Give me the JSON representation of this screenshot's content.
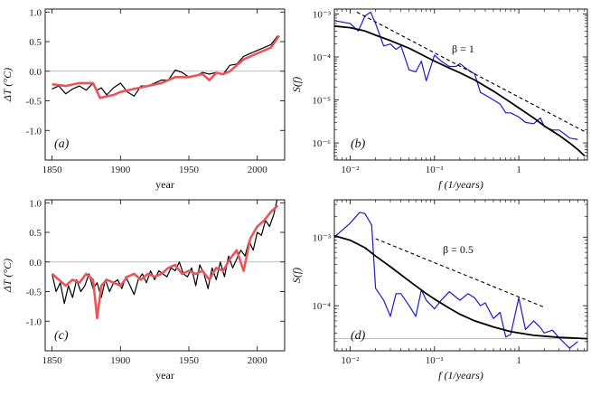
{
  "chart_data": [
    {
      "id": "a",
      "type": "line",
      "panel_label": "(a)",
      "xlabel": "year",
      "ylabel": "ΔT (°C)",
      "xlim": [
        1845,
        2020
      ],
      "ylim": [
        -1.5,
        1.05
      ],
      "x_ticks": [
        1850,
        1900,
        1950,
        2000
      ],
      "y_ticks": [
        -1.0,
        -0.5,
        0.0,
        0.5,
        1.0
      ],
      "y_tick_labels": [
        "-1.0",
        "-0.5",
        "0.0",
        "0.5",
        "1.0"
      ],
      "reference_line": 0,
      "series": [
        {
          "color": "#000000",
          "x": [
            1850,
            1855,
            1860,
            1865,
            1870,
            1875,
            1880,
            1883,
            1886,
            1890,
            1895,
            1900,
            1905,
            1910,
            1915,
            1920,
            1925,
            1930,
            1935,
            1940,
            1945,
            1950,
            1955,
            1960,
            1965,
            1970,
            1975,
            1980,
            1985,
            1990,
            1995,
            2000,
            2005,
            2010,
            2015
          ],
          "y": [
            -0.3,
            -0.25,
            -0.38,
            -0.3,
            -0.25,
            -0.32,
            -0.2,
            -0.32,
            -0.28,
            -0.4,
            -0.28,
            -0.2,
            -0.35,
            -0.42,
            -0.25,
            -0.25,
            -0.2,
            -0.15,
            -0.15,
            0.02,
            -0.02,
            -0.1,
            -0.08,
            -0.02,
            -0.05,
            -0.02,
            -0.05,
            0.1,
            0.12,
            0.25,
            0.3,
            0.35,
            0.4,
            0.45,
            0.6
          ]
        },
        {
          "color": "#e8555a",
          "x": [
            1850,
            1860,
            1870,
            1880,
            1885,
            1895,
            1900,
            1910,
            1920,
            1930,
            1940,
            1950,
            1960,
            1965,
            1970,
            1975,
            1980,
            1990,
            2000,
            2010,
            2016
          ],
          "y": [
            -0.22,
            -0.25,
            -0.2,
            -0.2,
            -0.45,
            -0.4,
            -0.35,
            -0.3,
            -0.25,
            -0.2,
            -0.1,
            -0.1,
            -0.05,
            -0.15,
            -0.03,
            -0.05,
            0.0,
            0.2,
            0.3,
            0.4,
            0.6
          ]
        }
      ]
    },
    {
      "id": "b",
      "type": "line",
      "panel_label": "(b)",
      "xlabel": "f (1/years)",
      "ylabel": "S(f)",
      "xscale": "log",
      "yscale": "log",
      "xlim": [
        0.0065,
        6.5
      ],
      "ylim": [
        4e-07,
        0.0013
      ],
      "x_ticks": [
        0.01,
        0.1,
        1
      ],
      "x_tick_labels": [
        "10⁻²",
        "10⁻¹",
        "1"
      ],
      "y_ticks": [
        1e-06,
        1e-05,
        0.0001,
        0.001
      ],
      "y_tick_labels": [
        "10⁻⁶",
        "10⁻⁵",
        "10⁻⁴",
        "10⁻³"
      ],
      "annotation": "β = 1",
      "series": [
        {
          "style": "blue-periodogram",
          "color": "#1a1acc",
          "x": [
            0.0065,
            0.01,
            0.0125,
            0.015,
            0.0175,
            0.02,
            0.025,
            0.03,
            0.035,
            0.04,
            0.05,
            0.06,
            0.07,
            0.08,
            0.1,
            0.12,
            0.15,
            0.18,
            0.2,
            0.25,
            0.3,
            0.35,
            0.4,
            0.5,
            0.6,
            0.7,
            0.8,
            1.0,
            1.2,
            1.5,
            1.8,
            2.0,
            2.5,
            3.0,
            3.5,
            4.0,
            5.0
          ],
          "y": [
            0.0007,
            0.0006,
            0.0004,
            0.0009,
            0.0011,
            0.0006,
            0.00018,
            0.0002,
            0.00015,
            0.00018,
            5e-05,
            4.5e-05,
            8e-05,
            2.8e-05,
            0.00011,
            8e-05,
            6e-05,
            6e-05,
            7e-05,
            5e-05,
            4e-05,
            1.5e-05,
            1.3e-05,
            1e-05,
            8e-06,
            5e-06,
            5e-06,
            4e-06,
            3e-06,
            2.8e-06,
            3.8e-06,
            2.4e-06,
            2e-06,
            2e-06,
            1.6e-06,
            1.3e-06,
            1.2e-06
          ]
        },
        {
          "style": "model",
          "color": "#000000",
          "x": [
            0.0065,
            0.01,
            0.015,
            0.02,
            0.03,
            0.05,
            0.08,
            0.1,
            0.15,
            0.2,
            0.3,
            0.5,
            0.8,
            1.0,
            1.5,
            2.0,
            3.0,
            4.0,
            5.0,
            6.0
          ],
          "y": [
            0.00052,
            0.00048,
            0.0004,
            0.00032,
            0.00024,
            0.00016,
            0.0001,
            8e-05,
            5.5e-05,
            4.3e-05,
            2.9e-05,
            1.6e-05,
            8.8e-06,
            6.5e-06,
            3.8e-06,
            2.5e-06,
            1.5e-06,
            1e-06,
            7e-07,
            5e-07
          ]
        },
        {
          "style": "reference",
          "color": "#000000",
          "x": [
            0.012,
            6.5
          ],
          "y": [
            0.0011,
            1.7e-06
          ]
        }
      ]
    },
    {
      "id": "c",
      "type": "line",
      "panel_label": "(c)",
      "xlabel": "year",
      "ylabel": "ΔT (°C)",
      "xlim": [
        1845,
        2020
      ],
      "ylim": [
        -1.5,
        1.05
      ],
      "x_ticks": [
        1850,
        1900,
        1950,
        2000
      ],
      "y_ticks": [
        -1.0,
        -0.5,
        0.0,
        0.5,
        1.0
      ],
      "y_tick_labels": [
        "-1.0",
        "-0.5",
        "0.0",
        "0.5",
        "1.0"
      ],
      "reference_line": 0,
      "series": [
        {
          "color": "#000000",
          "x": [
            1850,
            1853,
            1856,
            1859,
            1862,
            1865,
            1868,
            1871,
            1874,
            1877,
            1880,
            1883,
            1886,
            1889,
            1892,
            1895,
            1898,
            1901,
            1904,
            1907,
            1910,
            1913,
            1916,
            1919,
            1922,
            1925,
            1928,
            1931,
            1934,
            1937,
            1940,
            1943,
            1946,
            1949,
            1952,
            1955,
            1958,
            1961,
            1964,
            1967,
            1970,
            1973,
            1976,
            1979,
            1982,
            1985,
            1988,
            1991,
            1994,
            1997,
            2000,
            2003,
            2006,
            2009,
            2012,
            2015
          ],
          "y": [
            -0.2,
            -0.5,
            -0.35,
            -0.7,
            -0.4,
            -0.6,
            -0.3,
            -0.5,
            -0.4,
            -0.2,
            -0.45,
            -0.35,
            -0.6,
            -0.3,
            -0.5,
            -0.35,
            -0.3,
            -0.45,
            -0.25,
            -0.4,
            -0.55,
            -0.3,
            -0.2,
            -0.35,
            -0.15,
            -0.3,
            -0.15,
            -0.2,
            -0.25,
            -0.1,
            -0.15,
            0.0,
            -0.2,
            -0.25,
            -0.1,
            -0.4,
            -0.05,
            -0.2,
            -0.45,
            -0.1,
            -0.3,
            0.0,
            -0.25,
            0.1,
            -0.1,
            0.05,
            0.2,
            0.1,
            0.35,
            0.2,
            0.5,
            0.45,
            0.7,
            0.6,
            0.8,
            1.1
          ]
        },
        {
          "color": "#e8555a",
          "x": [
            1850,
            1855,
            1860,
            1865,
            1870,
            1875,
            1880,
            1883,
            1886,
            1890,
            1895,
            1900,
            1905,
            1910,
            1915,
            1920,
            1925,
            1930,
            1935,
            1940,
            1945,
            1950,
            1955,
            1960,
            1965,
            1970,
            1975,
            1980,
            1985,
            1990,
            1995,
            2000,
            2005,
            2010,
            2015
          ],
          "y": [
            -0.2,
            -0.3,
            -0.4,
            -0.3,
            -0.35,
            -0.2,
            -0.3,
            -0.95,
            -0.4,
            -0.3,
            -0.35,
            -0.4,
            -0.25,
            -0.2,
            -0.3,
            -0.2,
            -0.25,
            -0.2,
            -0.1,
            -0.05,
            -0.2,
            -0.15,
            -0.2,
            -0.15,
            -0.3,
            -0.1,
            -0.15,
            0.05,
            0.2,
            -0.15,
            0.4,
            0.6,
            0.7,
            0.85,
            0.95
          ]
        }
      ]
    },
    {
      "id": "d",
      "type": "line",
      "panel_label": "(d)",
      "xlabel": "f (1/years)",
      "ylabel": "S(f)",
      "xscale": "log",
      "yscale": "log",
      "xlim": [
        0.0065,
        6.5
      ],
      "ylim": [
        2.2e-05,
        0.0035
      ],
      "x_ticks": [
        0.01,
        0.1,
        1
      ],
      "x_tick_labels": [
        "10⁻²",
        "10⁻¹",
        "1"
      ],
      "y_ticks": [
        0.0001,
        0.001
      ],
      "y_tick_labels": [
        "10⁻⁴",
        "10⁻³"
      ],
      "reference_line": 3.3e-05,
      "annotation": "β = 0.5",
      "series": [
        {
          "style": "blue-periodogram",
          "color": "#1a1acc",
          "x": [
            0.0065,
            0.01,
            0.013,
            0.015,
            0.018,
            0.02,
            0.025,
            0.03,
            0.035,
            0.04,
            0.05,
            0.06,
            0.07,
            0.08,
            0.1,
            0.12,
            0.15,
            0.2,
            0.25,
            0.3,
            0.35,
            0.4,
            0.5,
            0.6,
            0.7,
            0.8,
            1.0,
            1.2,
            1.5,
            1.8,
            2.0,
            2.5,
            3.0,
            4.0,
            5.0
          ],
          "y": [
            0.001,
            0.0016,
            0.0023,
            0.0022,
            0.0015,
            0.00018,
            0.00012,
            7e-05,
            0.00015,
            0.00015,
            0.0001,
            7e-05,
            0.00017,
            0.00012,
            9e-05,
            0.00012,
            0.00016,
            0.00012,
            0.00015,
            0.00013,
            0.0001,
            0.00011,
            6.5e-05,
            8e-05,
            3.5e-05,
            3.8e-05,
            0.00013,
            4.5e-05,
            6e-05,
            4.8e-05,
            4e-05,
            4.4e-05,
            3.4e-05,
            2.4e-05,
            3e-05
          ]
        },
        {
          "style": "model",
          "color": "#000000",
          "x": [
            0.0065,
            0.01,
            0.015,
            0.02,
            0.03,
            0.05,
            0.08,
            0.1,
            0.15,
            0.2,
            0.3,
            0.5,
            0.8,
            1.0,
            1.5,
            2.0,
            3.0,
            4.0,
            5.0,
            6.5
          ],
          "y": [
            0.00105,
            0.0009,
            0.0007,
            0.00053,
            0.00037,
            0.00023,
            0.00015,
            0.000125,
            9.2e-05,
            7.5e-05,
            6e-05,
            4.9e-05,
            4.2e-05,
            4e-05,
            3.7e-05,
            3.6e-05,
            3.45e-05,
            3.4e-05,
            3.35e-05,
            3.3e-05
          ]
        },
        {
          "style": "reference",
          "color": "#000000",
          "x": [
            0.02,
            2.0
          ],
          "y": [
            0.00095,
            9.5e-05
          ]
        }
      ]
    }
  ]
}
